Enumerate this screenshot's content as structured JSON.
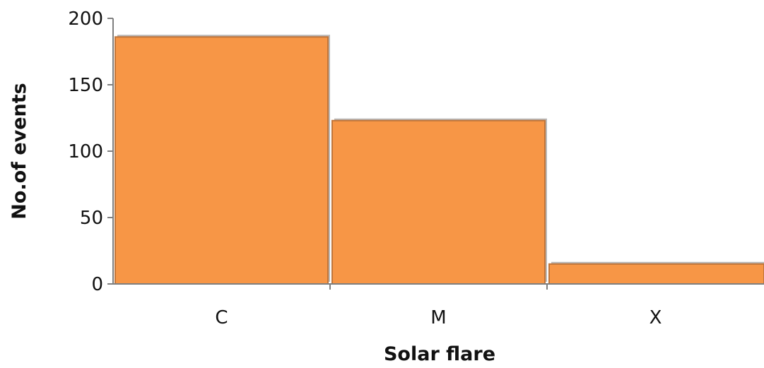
{
  "chart_data": {
    "type": "bar",
    "title": "",
    "xlabel": "Solar flare",
    "ylabel": "No.of events",
    "categories": [
      "C",
      "M",
      "X"
    ],
    "values": [
      186,
      123,
      15
    ],
    "ylim": [
      0,
      200
    ],
    "yticks": [
      "0",
      "50",
      "100",
      "150",
      "200"
    ],
    "grid": false,
    "legend": "none",
    "colors": {
      "bar_fill": "#f79646",
      "bar_edge": "#c0753a",
      "bar_shadow": "#b8b8b8",
      "axis": "#7f7f7f",
      "text": "#111111"
    }
  }
}
